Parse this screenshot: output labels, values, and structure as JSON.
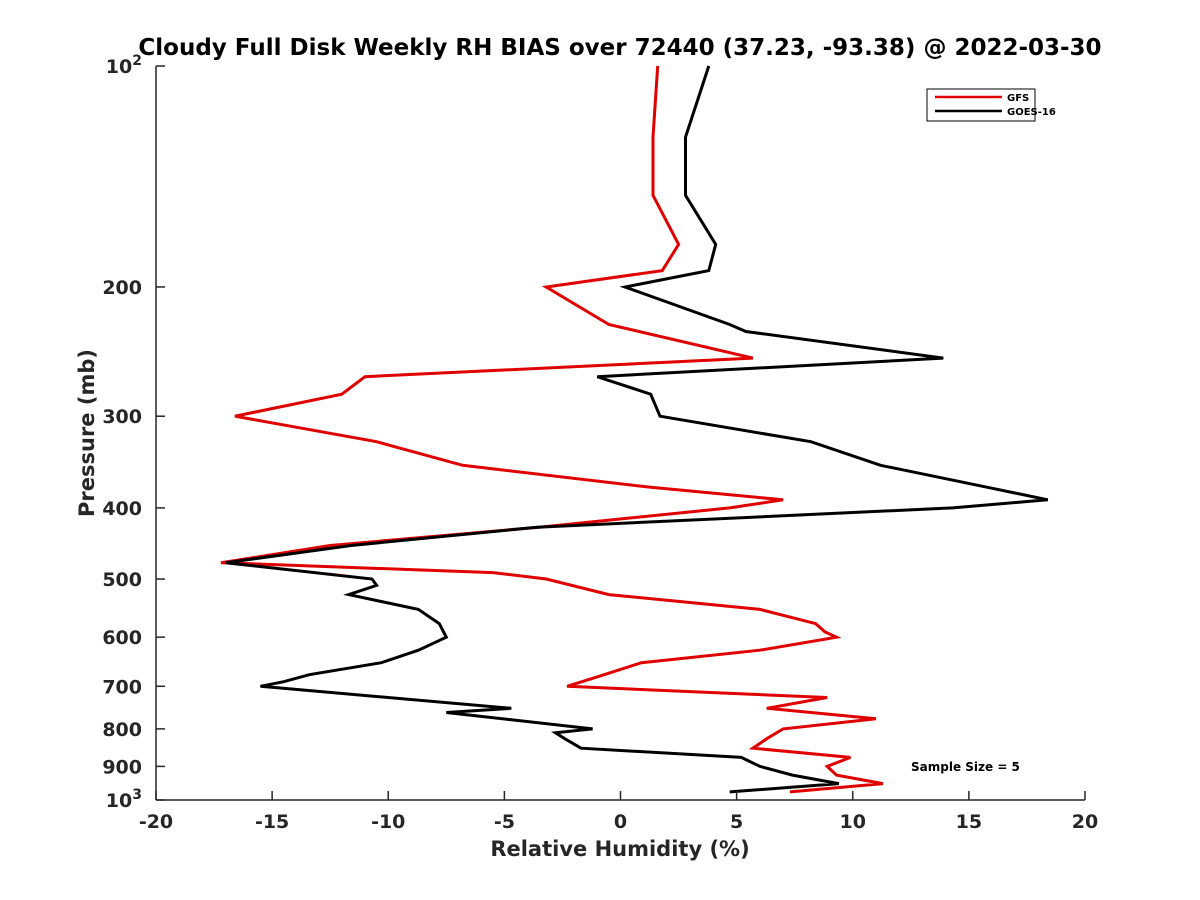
{
  "chart_data": {
    "type": "line",
    "title": "Cloudy Full Disk Weekly RH BIAS over 72440 (37.23, -93.38) @ 2022-03-30",
    "xlabel": "Relative Humidity (%)",
    "ylabel": "Pressure (mb)",
    "xlim": [
      -20,
      20
    ],
    "ylim": [
      100,
      1000
    ],
    "y_scale": "log",
    "y_reversed": true,
    "grid": false,
    "legend_position": "top-right",
    "x_ticks": [
      "-20",
      "-15",
      "-10",
      "-5",
      "0",
      "5",
      "10",
      "15",
      "20"
    ],
    "y_ticks": [
      {
        "value": 100,
        "base": "10",
        "exp": "2"
      },
      {
        "value": 200,
        "label": "200"
      },
      {
        "value": 300,
        "label": "300"
      },
      {
        "value": 400,
        "label": "400"
      },
      {
        "value": 500,
        "label": "500"
      },
      {
        "value": 600,
        "label": "600"
      },
      {
        "value": 700,
        "label": "700"
      },
      {
        "value": 800,
        "label": "800"
      },
      {
        "value": 900,
        "label": "900"
      },
      {
        "value": 1000,
        "base": "10",
        "exp": "3"
      }
    ],
    "annotation": "Sample Size = 5",
    "series": [
      {
        "name": "GFS",
        "color": "#e00000",
        "points": [
          {
            "x": 1.6,
            "p": 100
          },
          {
            "x": 1.4,
            "p": 125
          },
          {
            "x": 1.4,
            "p": 150
          },
          {
            "x": 2.5,
            "p": 175
          },
          {
            "x": 1.8,
            "p": 190
          },
          {
            "x": -3.2,
            "p": 200
          },
          {
            "x": -0.5,
            "p": 225
          },
          {
            "x": 5.7,
            "p": 250
          },
          {
            "x": -11.0,
            "p": 265
          },
          {
            "x": -12.0,
            "p": 280
          },
          {
            "x": -16.6,
            "p": 300
          },
          {
            "x": -10.5,
            "p": 325
          },
          {
            "x": -6.8,
            "p": 350
          },
          {
            "x": 1.3,
            "p": 375
          },
          {
            "x": 7.0,
            "p": 390
          },
          {
            "x": 4.7,
            "p": 400
          },
          {
            "x": -3.5,
            "p": 425
          },
          {
            "x": -12.5,
            "p": 450
          },
          {
            "x": -17.2,
            "p": 475
          },
          {
            "x": -5.5,
            "p": 490
          },
          {
            "x": -3.2,
            "p": 500
          },
          {
            "x": -0.5,
            "p": 525
          },
          {
            "x": 6.0,
            "p": 550
          },
          {
            "x": 8.4,
            "p": 575
          },
          {
            "x": 8.8,
            "p": 590
          },
          {
            "x": 9.3,
            "p": 600
          },
          {
            "x": 6.0,
            "p": 625
          },
          {
            "x": 0.9,
            "p": 650
          },
          {
            "x": -0.7,
            "p": 675
          },
          {
            "x": -2.3,
            "p": 700
          },
          {
            "x": 8.9,
            "p": 725
          },
          {
            "x": 6.3,
            "p": 750
          },
          {
            "x": 11.0,
            "p": 775
          },
          {
            "x": 7.0,
            "p": 800
          },
          {
            "x": 6.3,
            "p": 825
          },
          {
            "x": 5.7,
            "p": 850
          },
          {
            "x": 9.9,
            "p": 875
          },
          {
            "x": 8.9,
            "p": 900
          },
          {
            "x": 9.3,
            "p": 925
          },
          {
            "x": 11.3,
            "p": 950
          },
          {
            "x": 7.3,
            "p": 975
          }
        ]
      },
      {
        "name": "GOES-16",
        "color": "#000000",
        "points": [
          {
            "x": 3.8,
            "p": 100
          },
          {
            "x": 2.8,
            "p": 125
          },
          {
            "x": 2.8,
            "p": 150
          },
          {
            "x": 4.1,
            "p": 175
          },
          {
            "x": 3.8,
            "p": 190
          },
          {
            "x": 0.2,
            "p": 200
          },
          {
            "x": 4.7,
            "p": 225
          },
          {
            "x": 5.4,
            "p": 230
          },
          {
            "x": 13.9,
            "p": 250
          },
          {
            "x": -1.0,
            "p": 265
          },
          {
            "x": 1.3,
            "p": 280
          },
          {
            "x": 1.7,
            "p": 300
          },
          {
            "x": 8.2,
            "p": 325
          },
          {
            "x": 11.2,
            "p": 350
          },
          {
            "x": 15.8,
            "p": 375
          },
          {
            "x": 18.4,
            "p": 390
          },
          {
            "x": 14.3,
            "p": 400
          },
          {
            "x": -3.6,
            "p": 425
          },
          {
            "x": -11.6,
            "p": 450
          },
          {
            "x": -17.0,
            "p": 475
          },
          {
            "x": -10.7,
            "p": 500
          },
          {
            "x": -10.5,
            "p": 510
          },
          {
            "x": -11.7,
            "p": 525
          },
          {
            "x": -8.7,
            "p": 550
          },
          {
            "x": -7.8,
            "p": 575
          },
          {
            "x": -7.5,
            "p": 600
          },
          {
            "x": -8.7,
            "p": 625
          },
          {
            "x": -10.3,
            "p": 650
          },
          {
            "x": -13.4,
            "p": 675
          },
          {
            "x": -14.5,
            "p": 690
          },
          {
            "x": -15.5,
            "p": 700
          },
          {
            "x": -4.7,
            "p": 750
          },
          {
            "x": -7.5,
            "p": 760
          },
          {
            "x": -1.2,
            "p": 800
          },
          {
            "x": -2.8,
            "p": 810
          },
          {
            "x": -2.4,
            "p": 825
          },
          {
            "x": -1.7,
            "p": 850
          },
          {
            "x": 5.2,
            "p": 875
          },
          {
            "x": 6.0,
            "p": 900
          },
          {
            "x": 7.4,
            "p": 925
          },
          {
            "x": 9.4,
            "p": 950
          },
          {
            "x": 4.7,
            "p": 975
          }
        ]
      }
    ]
  }
}
